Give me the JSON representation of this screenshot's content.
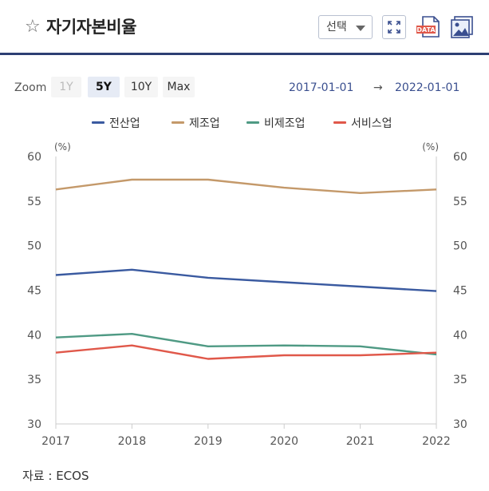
{
  "header": {
    "title": "자기자본비율",
    "select_label": "선택",
    "star_icon": "star-outline-icon",
    "icons": [
      "fullscreen-icon",
      "data-download-icon",
      "image-download-icon"
    ]
  },
  "zoom": {
    "label": "Zoom",
    "buttons": [
      "1Y",
      "5Y",
      "10Y",
      "Max"
    ],
    "active": "5Y",
    "disabled": [
      "1Y"
    ]
  },
  "range": {
    "from": "2017-01-01",
    "arrow": "→",
    "to": "2022-01-01"
  },
  "source": "자료 : ECOS",
  "chart_data": {
    "type": "line",
    "x": [
      "2017",
      "2018",
      "2019",
      "2020",
      "2021",
      "2022"
    ],
    "series": [
      {
        "name": "전산업",
        "color": "#3a5aa0",
        "values": [
          46.7,
          47.3,
          46.4,
          45.9,
          45.4,
          44.9
        ]
      },
      {
        "name": "제조업",
        "color": "#c4996a",
        "values": [
          56.3,
          57.4,
          57.4,
          56.5,
          55.9,
          56.3
        ]
      },
      {
        "name": "비제조업",
        "color": "#4f9a84",
        "values": [
          39.7,
          40.1,
          38.7,
          38.8,
          38.7,
          37.8
        ]
      },
      {
        "name": "서비스업",
        "color": "#e0584a",
        "values": [
          38.0,
          38.8,
          37.3,
          37.7,
          37.7,
          38.0
        ]
      }
    ],
    "ylim": [
      30,
      60
    ],
    "yticks": [
      30,
      35,
      40,
      45,
      50,
      55,
      60
    ],
    "y_unit_left": "(%)",
    "y_unit_right": "(%)",
    "grid": false,
    "legend": "top-center"
  }
}
